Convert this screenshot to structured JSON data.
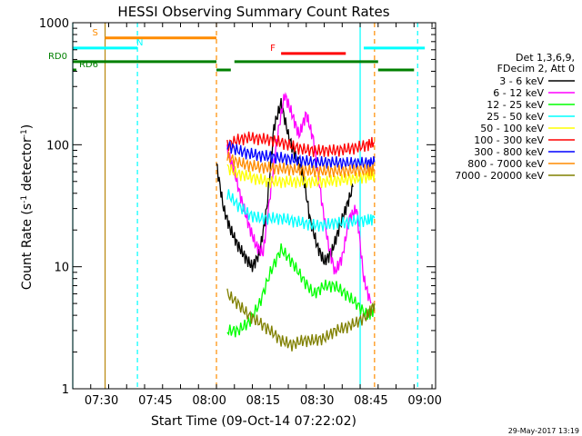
{
  "chart_data": {
    "type": "line",
    "title": "HESSI Observing Summary Count Rates",
    "xlabel": "Start Time (09-Oct-14 07:22:02)",
    "ylabel_main": "Count Rate (s",
    "ylabel_sup1": "-1",
    "ylabel_mid": " detector",
    "ylabel_sup2": "-1",
    "ylabel_end": ")",
    "y_scale": "log",
    "ylim": [
      1,
      1000
    ],
    "xlim": [
      "07:22",
      "09:03"
    ],
    "x_ticks": [
      "07:30",
      "07:45",
      "08:00",
      "08:15",
      "08:30",
      "08:45",
      "09:00"
    ],
    "y_ticks": [
      "1",
      "10",
      "100",
      "1000"
    ],
    "grid": false,
    "legend_placement": "right",
    "legend_header": [
      "Det 1,3,6,9,",
      "FDecim 2, Att 0"
    ],
    "series": [
      {
        "name": "3 - 6 keV",
        "color": "#000000",
        "x": [
          "08:02",
          "08:04",
          "08:06",
          "08:08",
          "08:10",
          "08:12",
          "08:14",
          "08:16",
          "08:18",
          "08:20",
          "08:22",
          "08:24",
          "08:26",
          "08:28",
          "08:30",
          "08:32",
          "08:34",
          "08:36",
          "08:38",
          "08:40"
        ],
        "y": [
          70,
          30,
          20,
          15,
          12,
          10,
          13,
          30,
          140,
          220,
          120,
          80,
          60,
          25,
          15,
          11,
          13,
          20,
          30,
          45
        ]
      },
      {
        "name": "6 - 12 keV",
        "color": "#ff00ff",
        "x": [
          "08:05",
          "08:07",
          "08:09",
          "08:11",
          "08:13",
          "08:15",
          "08:17",
          "08:19",
          "08:21",
          "08:23",
          "08:25",
          "08:27",
          "08:29",
          "08:31",
          "08:33",
          "08:35",
          "08:37",
          "08:39",
          "08:41",
          "08:43",
          "08:45"
        ],
        "y": [
          90,
          60,
          35,
          22,
          15,
          13,
          40,
          120,
          260,
          180,
          120,
          180,
          110,
          40,
          16,
          9,
          12,
          25,
          30,
          8,
          5
        ]
      },
      {
        "name": "12 - 25 keV",
        "color": "#00ff00",
        "x": [
          "08:05",
          "08:08",
          "08:11",
          "08:14",
          "08:17",
          "08:20",
          "08:23",
          "08:26",
          "08:29",
          "08:32",
          "08:35",
          "08:38",
          "08:41",
          "08:44",
          "08:46"
        ],
        "y": [
          3,
          3,
          3.5,
          5,
          9,
          14,
          11,
          8,
          6,
          7,
          7,
          6,
          5,
          4,
          4.5
        ]
      },
      {
        "name": "25 - 50 keV",
        "color": "#00ffff",
        "x": [
          "08:05",
          "08:08",
          "08:11",
          "08:14",
          "08:17",
          "08:20",
          "08:23",
          "08:26",
          "08:29",
          "08:32",
          "08:35",
          "08:38",
          "08:41",
          "08:44",
          "08:46"
        ],
        "y": [
          40,
          32,
          27,
          25,
          25,
          25,
          24,
          23,
          22,
          22,
          23,
          23,
          24,
          24,
          25
        ]
      },
      {
        "name": "50 - 100 keV",
        "color": "#ffff00",
        "x": [
          "08:05",
          "08:08",
          "08:11",
          "08:14",
          "08:17",
          "08:20",
          "08:23",
          "08:26",
          "08:29",
          "08:32",
          "08:35",
          "08:38",
          "08:41",
          "08:44",
          "08:46"
        ],
        "y": [
          65,
          58,
          55,
          52,
          50,
          50,
          50,
          50,
          50,
          50,
          51,
          52,
          53,
          55,
          57
        ]
      },
      {
        "name": "100 - 300 keV",
        "color": "#ff0000",
        "x": [
          "08:05",
          "08:08",
          "08:11",
          "08:14",
          "08:17",
          "08:20",
          "08:23",
          "08:26",
          "08:29",
          "08:32",
          "08:35",
          "08:38",
          "08:41",
          "08:44",
          "08:46"
        ],
        "y": [
          100,
          110,
          115,
          112,
          110,
          105,
          98,
          92,
          90,
          90,
          90,
          92,
          95,
          100,
          105
        ]
      },
      {
        "name": "300 - 800 keV",
        "color": "#0000ff",
        "x": [
          "08:05",
          "08:08",
          "08:11",
          "08:14",
          "08:17",
          "08:20",
          "08:23",
          "08:26",
          "08:29",
          "08:32",
          "08:35",
          "08:38",
          "08:41",
          "08:44",
          "08:46"
        ],
        "y": [
          100,
          90,
          85,
          82,
          80,
          78,
          76,
          74,
          72,
          72,
          72,
          71,
          71,
          71,
          72
        ]
      },
      {
        "name": "800 - 7000 keV",
        "color": "#ff8c00",
        "x": [
          "08:05",
          "08:08",
          "08:11",
          "08:14",
          "08:17",
          "08:20",
          "08:23",
          "08:26",
          "08:29",
          "08:32",
          "08:35",
          "08:38",
          "08:41",
          "08:44",
          "08:46"
        ],
        "y": [
          80,
          72,
          68,
          66,
          65,
          64,
          63,
          62,
          61,
          61,
          61,
          61,
          62,
          62,
          63
        ]
      },
      {
        "name": "7000 - 20000 keV",
        "color": "#808000",
        "x": [
          "08:05",
          "08:08",
          "08:11",
          "08:14",
          "08:17",
          "08:20",
          "08:23",
          "08:26",
          "08:29",
          "08:32",
          "08:35",
          "08:38",
          "08:41",
          "08:44",
          "08:46"
        ],
        "y": [
          6,
          5,
          4,
          3.5,
          3,
          2.5,
          2.3,
          2.5,
          2.5,
          2.6,
          3,
          3.2,
          3.5,
          4,
          5
        ]
      }
    ],
    "state_bars": [
      {
        "label": "S",
        "color": "#ff8c00",
        "y": 750,
        "from": "07:31",
        "to": "08:02"
      },
      {
        "label": "N",
        "color": "#00ffff",
        "y": 620,
        "from": "07:22",
        "to": "07:40"
      },
      {
        "label": "N",
        "color": "#00ffff",
        "y": 620,
        "from": "08:43",
        "to": "09:00"
      },
      {
        "label": "F",
        "color": "#ff0000",
        "y": 560,
        "from": "08:20",
        "to": "08:38"
      },
      {
        "label": "RD0",
        "color": "#008000",
        "y": 480,
        "from": "07:22",
        "to": "08:02"
      },
      {
        "label": "RD0",
        "color": "#008000",
        "y": 480,
        "from": "08:07",
        "to": "08:47"
      },
      {
        "label": "RD6",
        "color": "#008000",
        "y": 410,
        "from": "07:22",
        "to": "07:23"
      },
      {
        "label": "RD6",
        "color": "#008000",
        "y": 410,
        "from": "08:02",
        "to": "08:06"
      },
      {
        "label": "RD6",
        "color": "#008000",
        "y": 410,
        "from": "08:47",
        "to": "08:57"
      }
    ],
    "vlines": [
      {
        "time": "07:31",
        "color": "#b8860b",
        "style": "solid"
      },
      {
        "time": "07:40",
        "color": "#00ffff",
        "style": "dashed"
      },
      {
        "time": "08:02",
        "color": "#ff8c00",
        "style": "dashed"
      },
      {
        "time": "08:42",
        "color": "#00ffff",
        "style": "solid"
      },
      {
        "time": "08:46",
        "color": "#ff8c00",
        "style": "dashed"
      },
      {
        "time": "08:58",
        "color": "#00ffff",
        "style": "dashed"
      },
      {
        "time": "07:22",
        "color": "#00ffff",
        "style": "solid"
      }
    ]
  },
  "footer_date": "29-May-2017 13:19"
}
